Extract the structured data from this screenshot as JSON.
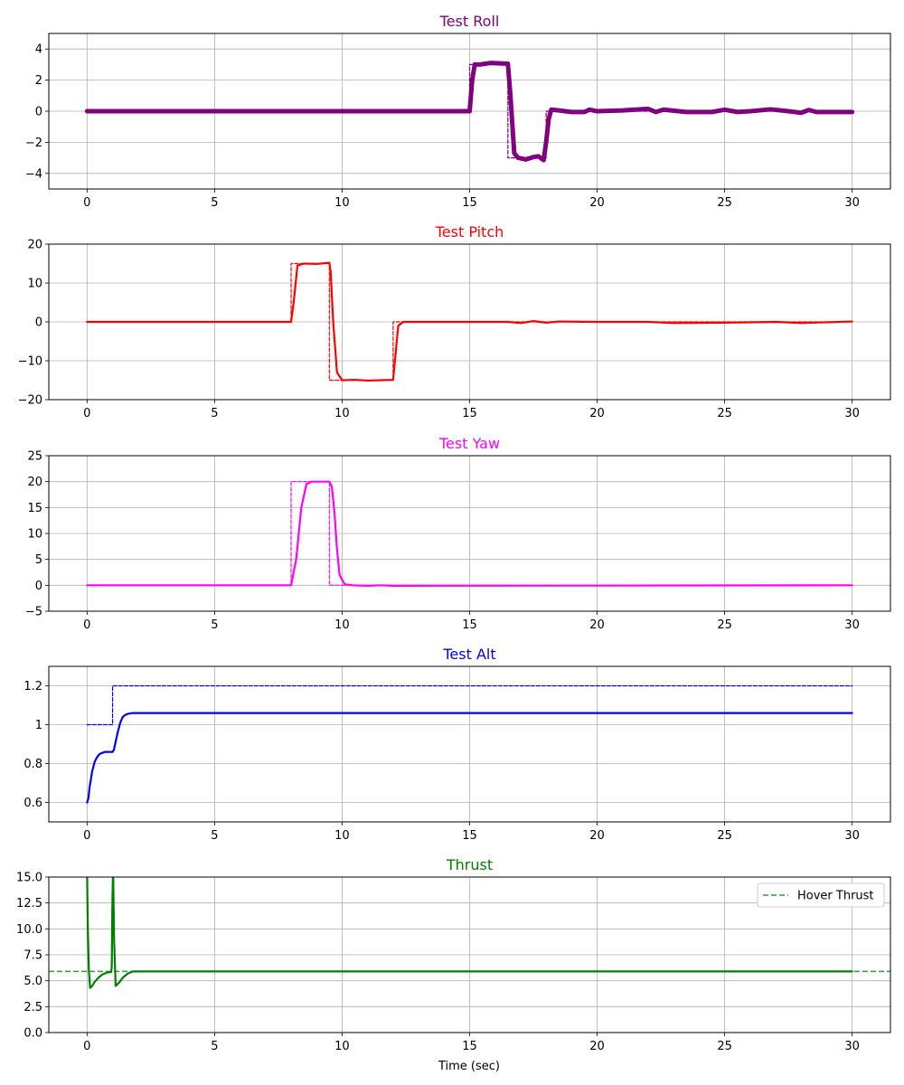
{
  "figure": {
    "xlabel": "Time (sec)"
  },
  "chart_data": [
    {
      "type": "line",
      "title": "Test Roll",
      "title_color": "#800080",
      "xlabel": "",
      "ylabel": "",
      "xlim": [
        -1.5,
        31.5
      ],
      "ylim": [
        -5,
        5
      ],
      "xticks": [
        0,
        5,
        10,
        15,
        20,
        25,
        30
      ],
      "yticks": [
        -4,
        -2,
        0,
        2,
        4
      ],
      "grid": true,
      "series": [
        {
          "role": "reference",
          "color": "#800080",
          "style": "dashed",
          "x": [
            0,
            15,
            15,
            16.5,
            16.5,
            18,
            18,
            30
          ],
          "y": [
            0,
            0,
            3,
            3,
            -3,
            -3,
            0,
            0
          ]
        },
        {
          "role": "actual",
          "color": "#800080",
          "style": "solid-thick",
          "x": [
            0,
            15,
            15.1,
            15.2,
            15.4,
            15.8,
            16.5,
            16.6,
            16.75,
            16.9,
            17.2,
            17.5,
            17.7,
            17.9,
            18.0,
            18.1,
            18.2,
            18.5,
            19,
            19.5,
            19.7,
            20,
            21,
            22,
            22.3,
            22.6,
            23.5,
            24.5,
            25,
            25.5,
            26,
            26.8,
            27.5,
            28,
            28.3,
            28.6,
            29,
            30
          ],
          "y": [
            0,
            0,
            2.0,
            3.0,
            3.0,
            3.1,
            3.05,
            1.0,
            -2.7,
            -3.0,
            -3.1,
            -2.95,
            -2.9,
            -3.15,
            -2.0,
            -0.5,
            0.1,
            0.05,
            -0.05,
            -0.05,
            0.1,
            0.0,
            0.05,
            0.15,
            -0.05,
            0.1,
            -0.05,
            -0.05,
            0.1,
            -0.05,
            0.0,
            0.12,
            0.0,
            -0.1,
            0.08,
            -0.05,
            -0.05,
            -0.05
          ]
        }
      ]
    },
    {
      "type": "line",
      "title": "Test Pitch",
      "title_color": "#ff0000",
      "xlabel": "",
      "ylabel": "",
      "xlim": [
        -1.5,
        31.5
      ],
      "ylim": [
        -20,
        20
      ],
      "xticks": [
        0,
        5,
        10,
        15,
        20,
        25,
        30
      ],
      "yticks": [
        -20,
        -10,
        0,
        10,
        20
      ],
      "grid": true,
      "series": [
        {
          "role": "reference",
          "color": "#ff0000",
          "style": "dashed",
          "x": [
            0,
            8,
            8,
            9.5,
            9.5,
            12,
            12,
            30
          ],
          "y": [
            0,
            0,
            15,
            15,
            -15,
            -15,
            0,
            0
          ]
        },
        {
          "role": "actual",
          "color": "#ff0000",
          "style": "solid",
          "x": [
            0,
            8,
            8.1,
            8.25,
            8.5,
            9.0,
            9.5,
            9.55,
            9.65,
            9.8,
            10.0,
            10.5,
            11.0,
            11.5,
            12.0,
            12.1,
            12.2,
            12.4,
            12.7,
            13,
            15,
            16.5,
            17,
            17.5,
            18,
            18.5,
            20,
            22,
            23,
            25,
            27,
            28,
            30
          ],
          "y": [
            0,
            0,
            5,
            14.5,
            15,
            14.9,
            15.2,
            13,
            0,
            -13,
            -15,
            -14.9,
            -15.1,
            -15,
            -14.9,
            -8,
            -1,
            0,
            0,
            0,
            0,
            0,
            -0.3,
            0.2,
            -0.2,
            0.1,
            0,
            0,
            -0.3,
            -0.2,
            0,
            -0.3,
            0.1
          ]
        }
      ]
    },
    {
      "type": "line",
      "title": "Test Yaw",
      "title_color": "#ff00ff",
      "xlabel": "",
      "ylabel": "",
      "xlim": [
        -1.5,
        31.5
      ],
      "ylim": [
        -5,
        25
      ],
      "xticks": [
        0,
        5,
        10,
        15,
        20,
        25,
        30
      ],
      "yticks": [
        -5,
        0,
        5,
        10,
        15,
        20,
        25
      ],
      "grid": true,
      "series": [
        {
          "role": "reference",
          "color": "#ff00ff",
          "style": "dashed",
          "x": [
            0,
            8,
            8,
            9.5,
            9.5,
            12,
            30
          ],
          "y": [
            0,
            0,
            20,
            20,
            0,
            0,
            0
          ]
        },
        {
          "role": "actual",
          "color": "#ff00ff",
          "style": "solid",
          "x": [
            0,
            8,
            8.2,
            8.4,
            8.6,
            8.8,
            9.5,
            9.6,
            9.7,
            9.8,
            9.9,
            10.1,
            10.4,
            11,
            11.5,
            12,
            30
          ],
          "y": [
            0,
            0,
            5,
            15,
            19.5,
            20,
            20,
            19,
            14,
            7,
            2,
            0.2,
            0,
            -0.1,
            0,
            -0.1,
            0
          ]
        }
      ]
    },
    {
      "type": "line",
      "title": "Test Alt",
      "title_color": "#0000ff",
      "xlabel": "",
      "ylabel": "",
      "xlim": [
        -1.5,
        31.5
      ],
      "ylim": [
        0.5,
        1.3
      ],
      "xticks": [
        0,
        5,
        10,
        15,
        20,
        25,
        30
      ],
      "yticks": [
        0.6,
        0.8,
        1.0,
        1.2
      ],
      "grid": true,
      "series": [
        {
          "role": "reference",
          "color": "#0000ff",
          "style": "dashed",
          "x": [
            0,
            1,
            1,
            30
          ],
          "y": [
            1.0,
            1.0,
            1.2,
            1.2
          ]
        },
        {
          "role": "actual",
          "color": "#0000ff",
          "style": "solid",
          "x": [
            0,
            0.05,
            0.1,
            0.2,
            0.3,
            0.4,
            0.5,
            0.6,
            0.7,
            0.8,
            0.9,
            1.0,
            1.05,
            1.1,
            1.2,
            1.3,
            1.4,
            1.5,
            1.6,
            1.7,
            1.8,
            2.0,
            30
          ],
          "y": [
            0.6,
            0.62,
            0.68,
            0.76,
            0.81,
            0.835,
            0.85,
            0.855,
            0.86,
            0.86,
            0.86,
            0.86,
            0.87,
            0.9,
            0.96,
            1.01,
            1.04,
            1.05,
            1.056,
            1.058,
            1.06,
            1.06,
            1.06
          ]
        }
      ]
    },
    {
      "type": "line",
      "title": "Thrust",
      "title_color": "#008000",
      "xlabel": "Time (sec)",
      "ylabel": "",
      "xlim": [
        -1.5,
        31.5
      ],
      "ylim": [
        0,
        15
      ],
      "xticks": [
        0,
        5,
        10,
        15,
        20,
        25,
        30
      ],
      "yticks": [
        0.0,
        2.5,
        5.0,
        7.5,
        10.0,
        12.5,
        15.0
      ],
      "ytick_labels": [
        "0.0",
        "2.5",
        "5.0",
        "7.5",
        "10.0",
        "12.5",
        "15.0"
      ],
      "grid": true,
      "legend": {
        "placement": "top-right",
        "entries": [
          "Hover Thrust"
        ]
      },
      "hline": {
        "y": 5.9,
        "label": "Hover Thrust",
        "color": "#2ca02c",
        "style": "dashed"
      },
      "series": [
        {
          "role": "actual",
          "color": "#008000",
          "style": "solid",
          "x": [
            0,
            0.03,
            0.07,
            0.12,
            0.2,
            0.3,
            0.45,
            0.6,
            0.8,
            0.95,
            0.97,
            0.99,
            1.02,
            1.06,
            1.12,
            1.25,
            1.4,
            1.6,
            1.8,
            2.0,
            30
          ],
          "y": [
            15.5,
            10,
            6,
            4.3,
            4.5,
            4.9,
            5.3,
            5.6,
            5.8,
            5.85,
            6.5,
            12,
            16,
            9,
            4.5,
            4.8,
            5.3,
            5.7,
            5.9,
            5.9,
            5.9
          ]
        }
      ]
    }
  ]
}
